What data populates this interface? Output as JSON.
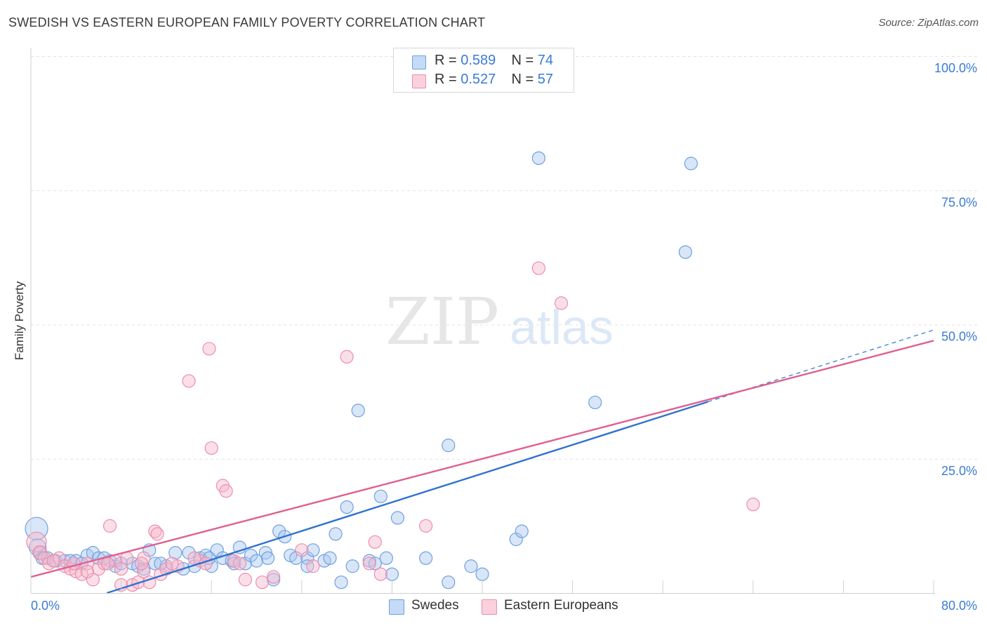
{
  "header": {
    "title": "SWEDISH VS EASTERN EUROPEAN FAMILY POVERTY CORRELATION CHART",
    "source": "Source: ZipAtlas.com"
  },
  "legend": {
    "rows": [
      {
        "r_label": "R = ",
        "r_value": "0.589",
        "n_label": "N = ",
        "n_value": "74"
      },
      {
        "r_label": "R = ",
        "r_value": "0.527",
        "n_label": "N = ",
        "n_value": "57"
      }
    ]
  },
  "bottom_legend": {
    "swedes": "Swedes",
    "eastern": "Eastern Europeans"
  },
  "watermark": {
    "zip": "ZIP",
    "atlas": "atlas"
  },
  "chart_data": {
    "type": "scatter",
    "title": "SWEDISH VS EASTERN EUROPEAN FAMILY POVERTY CORRELATION CHART",
    "xlabel": "",
    "ylabel": "Family Poverty",
    "xlim": [
      0,
      80
    ],
    "ylim": [
      0,
      100
    ],
    "x_tick_labels": [
      "0.0%",
      "80.0%"
    ],
    "y_ticks": [
      25,
      50,
      75,
      100
    ],
    "y_tick_labels": [
      "25.0%",
      "50.0%",
      "75.0%",
      "100.0%"
    ],
    "grid": true,
    "legend_position": "top-center",
    "series": [
      {
        "name": "Swedes",
        "color": "#a8c8f0",
        "stroke": "#6fa0e0",
        "trend_color": "#2f72d0",
        "r": 0.589,
        "n": 74,
        "trend": {
          "x0": 0,
          "y0": -4.5,
          "x1": 80,
          "y1": 49
        },
        "trend_solid_until": 60,
        "points": [
          [
            0.5,
            12,
            16
          ],
          [
            0.6,
            8.5,
            12
          ],
          [
            0.8,
            7.5,
            9
          ],
          [
            1.0,
            6.5,
            9
          ],
          [
            1.5,
            6.5,
            9
          ],
          [
            2.2,
            6,
            9
          ],
          [
            3,
            6,
            9
          ],
          [
            4,
            6,
            9
          ],
          [
            5,
            7,
            9
          ],
          [
            5.5,
            7.5,
            9
          ],
          [
            6,
            6.5,
            9
          ],
          [
            7,
            6,
            9
          ],
          [
            7.5,
            5,
            9
          ],
          [
            8,
            5.5,
            9
          ],
          [
            9,
            5.5,
            9
          ],
          [
            9.5,
            5,
            9
          ],
          [
            10.5,
            8,
            9
          ],
          [
            11,
            5.5,
            9
          ],
          [
            12,
            5,
            9
          ],
          [
            12.8,
            7.5,
            9
          ],
          [
            13.5,
            4.5,
            9
          ],
          [
            14,
            7.5,
            9
          ],
          [
            14.5,
            5,
            9
          ],
          [
            15,
            6.5,
            9
          ],
          [
            15.5,
            7,
            9
          ],
          [
            16,
            5,
            9
          ],
          [
            16.5,
            8,
            9
          ],
          [
            17,
            6.5,
            9
          ],
          [
            17.8,
            6,
            9
          ],
          [
            18.5,
            8.5,
            9
          ],
          [
            19,
            5.5,
            9
          ],
          [
            19.5,
            7,
            9
          ],
          [
            20,
            6,
            9
          ],
          [
            20.8,
            7.5,
            9
          ],
          [
            21.5,
            2.5,
            9
          ],
          [
            22,
            11.5,
            9
          ],
          [
            22.5,
            10.5,
            9
          ],
          [
            23,
            7,
            9
          ],
          [
            23.5,
            6.5,
            9
          ],
          [
            24.5,
            6.5,
            9
          ],
          [
            24.5,
            5,
            9
          ],
          [
            25,
            8,
            9
          ],
          [
            26,
            6,
            9
          ],
          [
            26.5,
            6.5,
            9
          ],
          [
            27,
            11,
            9
          ],
          [
            27.5,
            2,
            9
          ],
          [
            28,
            16,
            9
          ],
          [
            28.5,
            5,
            9
          ],
          [
            29,
            34,
            9
          ],
          [
            30,
            6,
            9
          ],
          [
            30.5,
            5.5,
            9
          ],
          [
            31,
            18,
            9
          ],
          [
            31.5,
            6.5,
            9
          ],
          [
            32,
            3.5,
            9
          ],
          [
            32.5,
            14,
            9
          ],
          [
            35,
            6.5,
            9
          ],
          [
            37,
            27.5,
            9
          ],
          [
            37,
            2,
            9
          ],
          [
            39,
            5,
            9
          ],
          [
            40,
            3.5,
            9
          ],
          [
            43,
            10,
            9
          ],
          [
            43.5,
            11.5,
            9
          ],
          [
            45,
            81,
            9
          ],
          [
            50,
            35.5,
            9
          ],
          [
            58,
            63.5,
            9
          ],
          [
            58.5,
            80,
            9
          ],
          [
            6.5,
            6.5,
            9
          ],
          [
            4.5,
            5.5,
            9
          ],
          [
            10,
            4.5,
            9
          ],
          [
            18,
            5.5,
            9
          ],
          [
            21,
            6.5,
            9
          ],
          [
            11.5,
            5.5,
            9
          ],
          [
            3.5,
            6,
            9
          ],
          [
            15.8,
            6.5,
            9
          ]
        ]
      },
      {
        "name": "Eastern Europeans",
        "color": "#f7b8cb",
        "stroke": "#ec8eab",
        "trend_color": "#e06090",
        "r": 0.527,
        "n": 57,
        "trend": {
          "x0": 0,
          "y0": 3,
          "x1": 80,
          "y1": 47
        },
        "points": [
          [
            0.5,
            9.5,
            14
          ],
          [
            0.8,
            7.5,
            10
          ],
          [
            1.2,
            6.5,
            9
          ],
          [
            1.6,
            5.5,
            9
          ],
          [
            2.5,
            6.5,
            9
          ],
          [
            3,
            5,
            9
          ],
          [
            3.5,
            4.5,
            9
          ],
          [
            4,
            4,
            9
          ],
          [
            4.5,
            3.5,
            9
          ],
          [
            5,
            5.5,
            9
          ],
          [
            5.5,
            2.5,
            9
          ],
          [
            6,
            4.5,
            9
          ],
          [
            6.5,
            5.5,
            9
          ],
          [
            7,
            12.5,
            9
          ],
          [
            7.5,
            6,
            9
          ],
          [
            8,
            4.5,
            9
          ],
          [
            8.5,
            6.5,
            9
          ],
          [
            9,
            1.5,
            9
          ],
          [
            9.5,
            2,
            9
          ],
          [
            10,
            4,
            9
          ],
          [
            10.5,
            2,
            9
          ],
          [
            11,
            11.5,
            9
          ],
          [
            11.2,
            11,
            9
          ],
          [
            11.5,
            3.5,
            9
          ],
          [
            12,
            4.5,
            9
          ],
          [
            13,
            5,
            9
          ],
          [
            14,
            39.5,
            9
          ],
          [
            15,
            6,
            9
          ],
          [
            15.5,
            5.5,
            9
          ],
          [
            15.8,
            45.5,
            9
          ],
          [
            16,
            27,
            9
          ],
          [
            17,
            20,
            9
          ],
          [
            17.3,
            19,
            9
          ],
          [
            18,
            6,
            9
          ],
          [
            18.5,
            5.5,
            9
          ],
          [
            19,
            2.5,
            9
          ],
          [
            20.5,
            2,
            9
          ],
          [
            21.5,
            3,
            9
          ],
          [
            24,
            8,
            9
          ],
          [
            25,
            5,
            9
          ],
          [
            28,
            44,
            9
          ],
          [
            30,
            5.5,
            9
          ],
          [
            30.5,
            9.5,
            9
          ],
          [
            31,
            3.5,
            9
          ],
          [
            35,
            12.5,
            9
          ],
          [
            45,
            60.5,
            9
          ],
          [
            47,
            54,
            9
          ],
          [
            64,
            16.5,
            9
          ],
          [
            2,
            6,
            9
          ],
          [
            5,
            4,
            9
          ],
          [
            8,
            1.5,
            9
          ],
          [
            10,
            6.5,
            9
          ],
          [
            12.5,
            5.5,
            9
          ],
          [
            6.8,
            5.5,
            9
          ],
          [
            9.8,
            5.5,
            9
          ],
          [
            14.5,
            6.5,
            9
          ],
          [
            3.8,
            5.5,
            9
          ]
        ]
      }
    ]
  }
}
